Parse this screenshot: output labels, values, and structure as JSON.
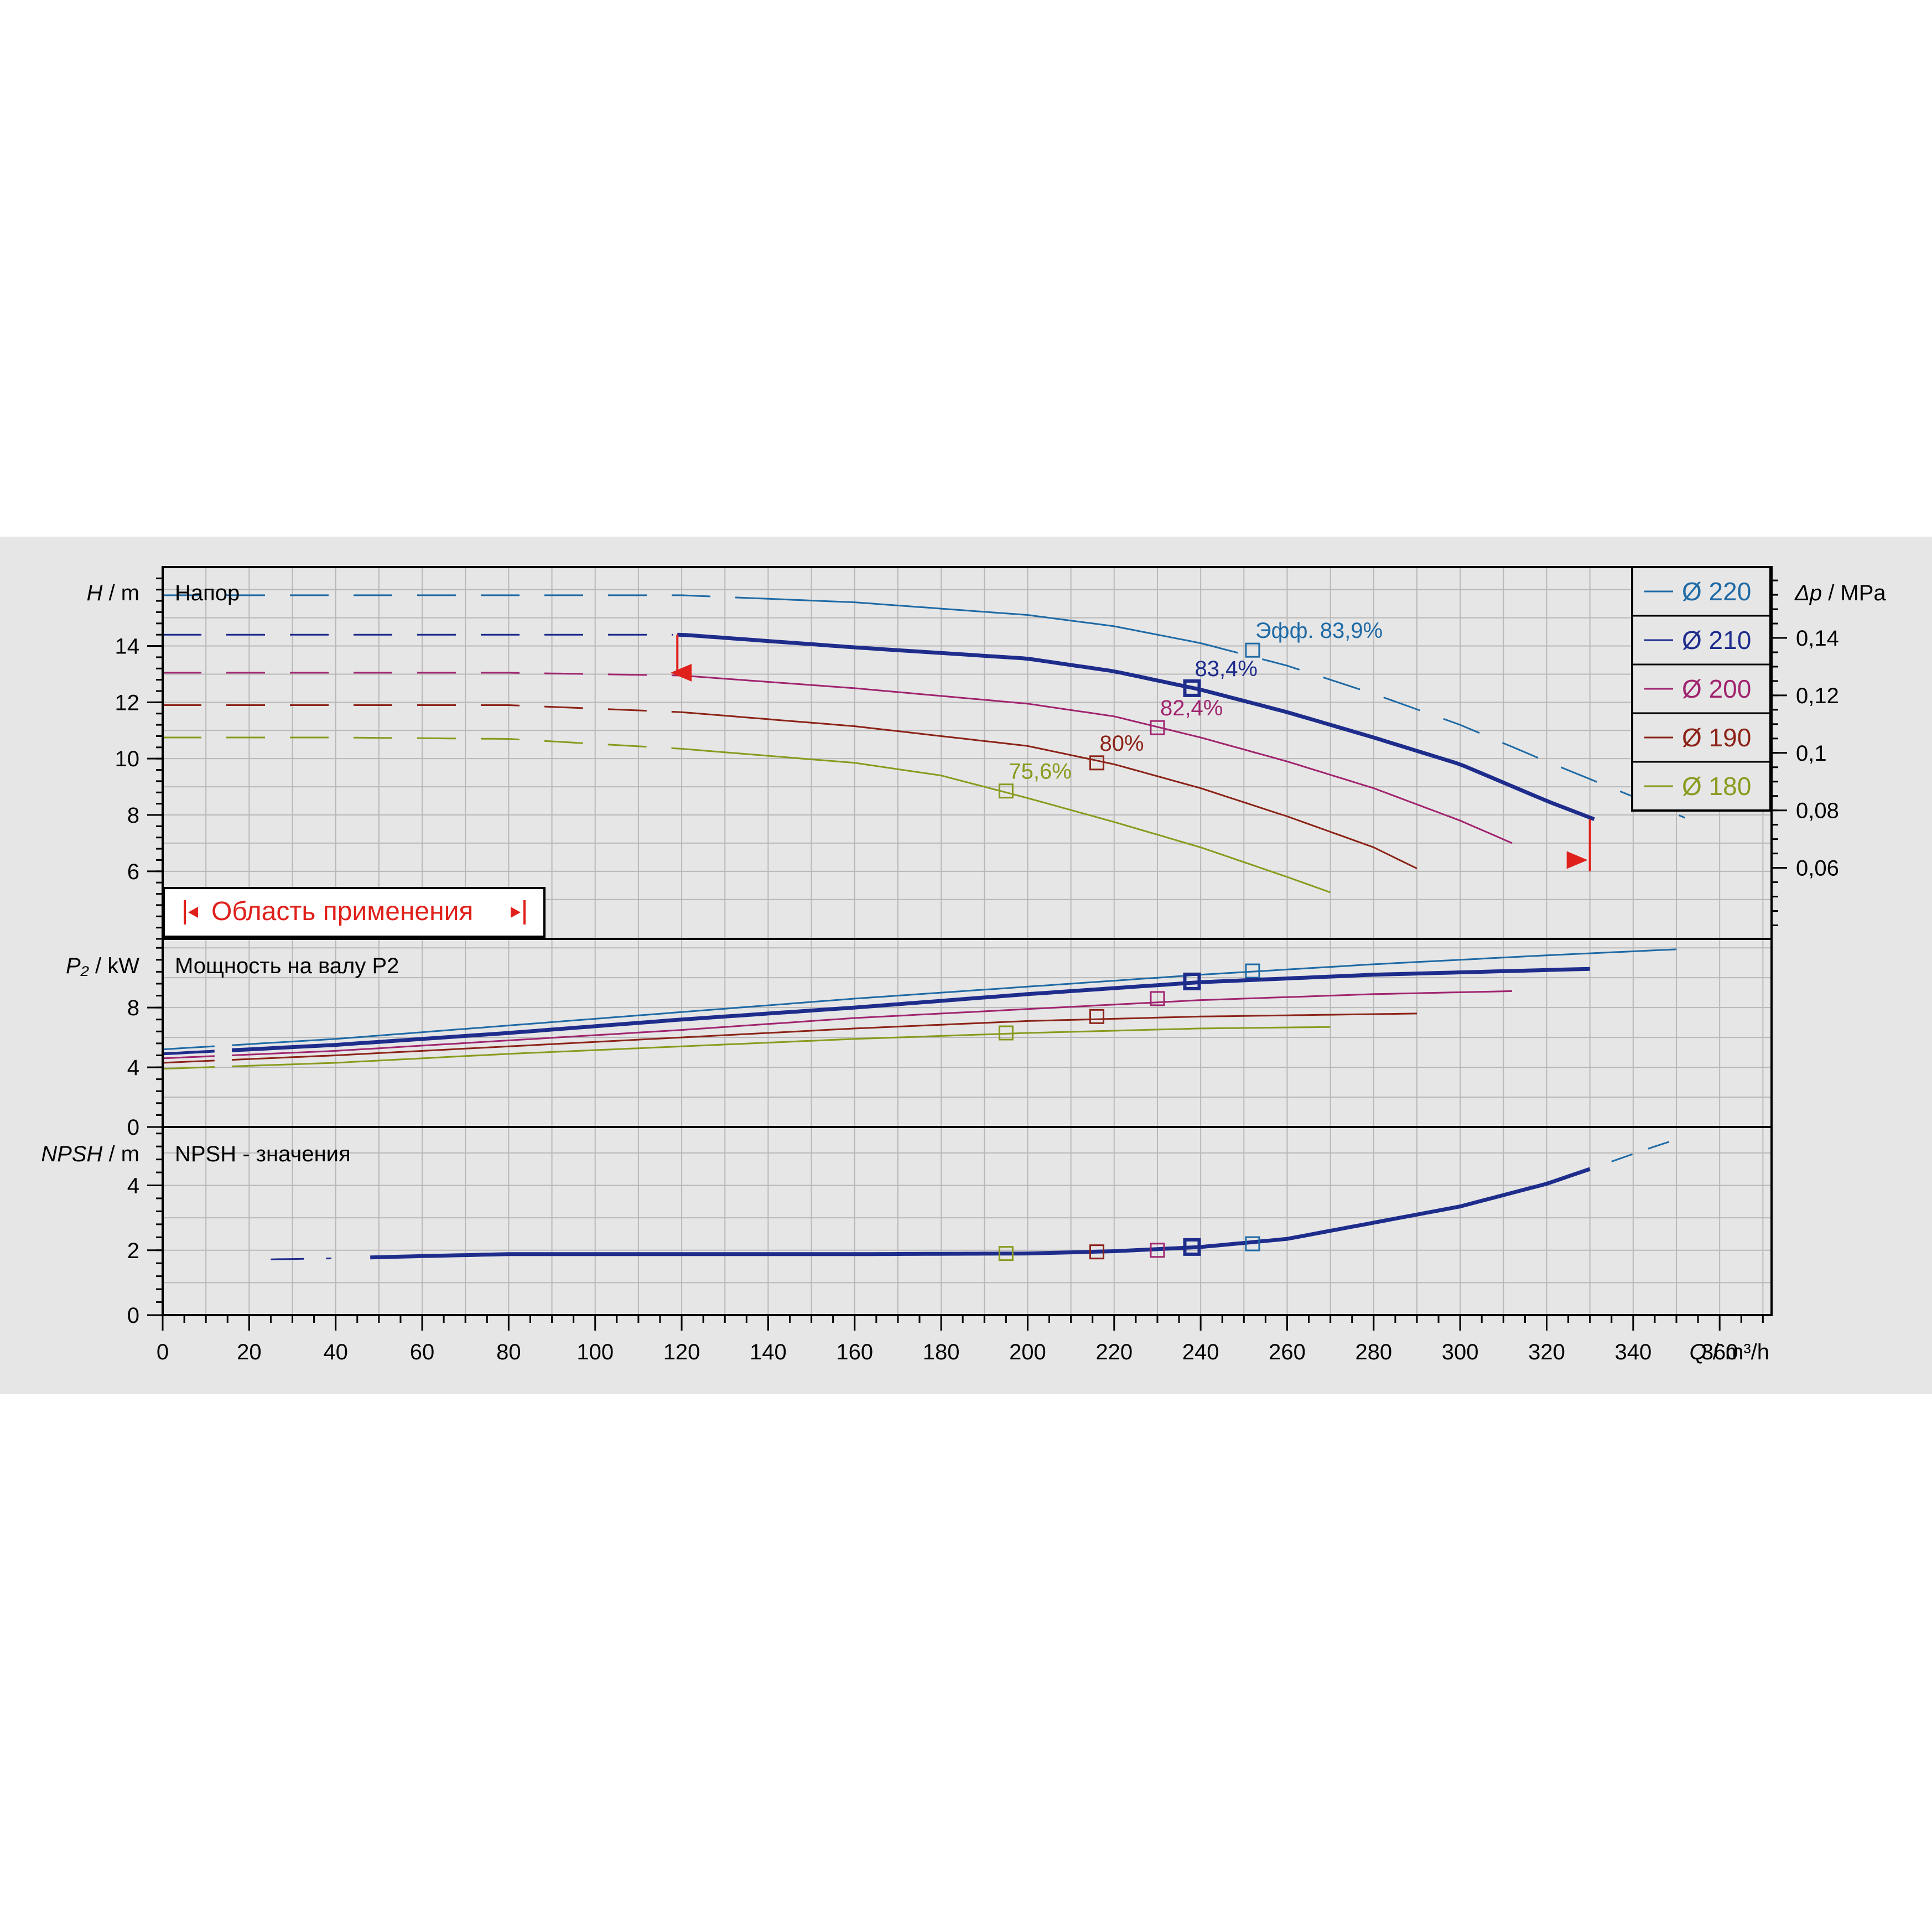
{
  "chart_data": {
    "type": "line",
    "x_axis": {
      "label_var": "Q",
      "label_unit": "m³/h",
      "ticks": [
        0,
        20,
        40,
        60,
        80,
        100,
        120,
        140,
        160,
        180,
        200,
        220,
        240,
        260,
        280,
        300,
        320,
        340,
        360
      ],
      "range": [
        0,
        372
      ]
    },
    "legend": {
      "placement": "top-right",
      "entries": [
        {
          "label": "Ø 220",
          "color": "#1f6aa5"
        },
        {
          "label": "Ø 210",
          "color": "#1e2c8c"
        },
        {
          "label": "Ø 200",
          "color": "#a0246f"
        },
        {
          "label": "Ø 190",
          "color": "#8c2318"
        },
        {
          "label": "Ø 180",
          "color": "#8a9a1e"
        }
      ]
    },
    "range_box": {
      "label": "Область применения",
      "color": "#e0201b",
      "q_min": 119,
      "q_max": 330
    },
    "panels": {
      "head": {
        "title": "Напор",
        "ylabel_var": "H",
        "ylabel_unit": "m",
        "yticks": [
          6,
          8,
          10,
          12,
          14
        ],
        "ylim": [
          3.6,
          16.8
        ],
        "right_axis": {
          "label_var": "Δp",
          "label_unit": "MPa",
          "ticks": [
            "0,06",
            "0,08",
            "0,1",
            "0,12",
            "0,14"
          ],
          "values": [
            0.06,
            0.08,
            0.1,
            0.12,
            0.14
          ]
        },
        "series": [
          {
            "name": "Ø 220",
            "color": "#1f6aa5",
            "width": 3,
            "x": [
              0,
              40,
              80,
              120,
              160,
              200,
              220,
              240,
              260,
              280,
              300,
              320,
              352
            ],
            "y": [
              15.8,
              15.8,
              15.8,
              15.8,
              15.55,
              15.1,
              14.7,
              14.1,
              13.3,
              12.3,
              11.2,
              9.9,
              7.9
            ],
            "solid_to": 240,
            "bep": {
              "x": 252,
              "y": 13.85,
              "label": "Эфф.  83,9%"
            }
          },
          {
            "name": "Ø 210",
            "color": "#1e2c8c",
            "width": 7,
            "x": [
              0,
              40,
              80,
              120,
              160,
              200,
              220,
              240,
              260,
              280,
              300,
              320,
              331
            ],
            "y": [
              14.4,
              14.4,
              14.4,
              14.4,
              13.95,
              13.55,
              13.1,
              12.45,
              11.65,
              10.75,
              9.8,
              8.5,
              7.85
            ],
            "solid_from": 119,
            "bep": {
              "x": 238,
              "y": 12.5,
              "label": "83,4%"
            }
          },
          {
            "name": "Ø 200",
            "color": "#a0246f",
            "width": 3,
            "x": [
              0,
              40,
              80,
              120,
              160,
              200,
              220,
              240,
              260,
              280,
              300,
              312
            ],
            "y": [
              13.05,
              13.05,
              13.05,
              12.95,
              12.5,
              11.95,
              11.5,
              10.75,
              9.9,
              8.95,
              7.8,
              7.0
            ],
            "solid_from": 120,
            "bep": {
              "x": 230,
              "y": 11.1,
              "label": "82,4%"
            }
          },
          {
            "name": "Ø 190",
            "color": "#8c2318",
            "width": 3,
            "x": [
              0,
              40,
              80,
              120,
              160,
              200,
              220,
              240,
              260,
              280,
              290
            ],
            "y": [
              11.9,
              11.9,
              11.9,
              11.65,
              11.15,
              10.45,
              9.8,
              8.95,
              7.95,
              6.85,
              6.1
            ],
            "solid_from": 120,
            "bep": {
              "x": 216,
              "y": 9.85,
              "label": "80%"
            }
          },
          {
            "name": "Ø 180",
            "color": "#8a9a1e",
            "width": 3,
            "x": [
              0,
              40,
              80,
              120,
              160,
              180,
              200,
              220,
              240,
              260,
              270
            ],
            "y": [
              10.75,
              10.75,
              10.7,
              10.35,
              9.85,
              9.4,
              8.6,
              7.75,
              6.85,
              5.8,
              5.25
            ],
            "solid_from": 120,
            "bep": {
              "x": 195,
              "y": 8.85,
              "label": "75,6%"
            }
          }
        ],
        "range_markers": [
          {
            "q": 120,
            "h": 13.05
          },
          {
            "q": 330,
            "h": 6.4
          }
        ]
      },
      "power": {
        "title": "Мощность на валу P2",
        "ylabel_var": "P₂",
        "ylabel_unit": "kW",
        "yticks": [
          0,
          4,
          8
        ],
        "ylim": [
          0,
          12.6
        ],
        "series": [
          {
            "name": "Ø 220",
            "color": "#1f6aa5",
            "width": 3,
            "x": [
              0,
              40,
              80,
              120,
              160,
              200,
              240,
              280,
              320,
              350
            ],
            "y": [
              5.2,
              5.9,
              6.8,
              7.7,
              8.6,
              9.4,
              10.2,
              10.9,
              11.5,
              11.9
            ],
            "bep": {
              "x": 252,
              "y": 10.45
            }
          },
          {
            "name": "Ø 210",
            "color": "#1e2c8c",
            "width": 7,
            "x": [
              0,
              40,
              80,
              120,
              160,
              200,
              240,
              280,
              331
            ],
            "y": [
              4.9,
              5.5,
              6.3,
              7.2,
              8.0,
              8.9,
              9.7,
              10.2,
              10.6
            ],
            "bep": {
              "x": 238,
              "y": 9.75
            }
          },
          {
            "name": "Ø 200",
            "color": "#a0246f",
            "width": 3,
            "x": [
              0,
              40,
              80,
              120,
              160,
              200,
              240,
              280,
              312
            ],
            "y": [
              4.6,
              5.1,
              5.8,
              6.5,
              7.3,
              7.9,
              8.5,
              8.9,
              9.1
            ],
            "bep": {
              "x": 230,
              "y": 8.6
            }
          },
          {
            "name": "Ø 190",
            "color": "#8c2318",
            "width": 3,
            "x": [
              0,
              40,
              80,
              120,
              160,
              200,
              240,
              290
            ],
            "y": [
              4.3,
              4.8,
              5.4,
              6.0,
              6.6,
              7.1,
              7.4,
              7.6
            ],
            "bep": {
              "x": 216,
              "y": 7.4
            }
          },
          {
            "name": "Ø 180",
            "color": "#8a9a1e",
            "width": 3,
            "x": [
              0,
              40,
              80,
              120,
              160,
              200,
              240,
              270
            ],
            "y": [
              3.9,
              4.3,
              4.9,
              5.4,
              5.9,
              6.3,
              6.6,
              6.7
            ],
            "bep": {
              "x": 195,
              "y": 6.3
            }
          }
        ]
      },
      "npsh": {
        "title": "NPSH - значения",
        "ylabel_var": "NPSH",
        "ylabel_unit": "m",
        "yticks": [
          0,
          2,
          4
        ],
        "ylim": [
          0,
          5.8
        ],
        "series": [
          {
            "name": "NPSH",
            "color": "#1e2c8c",
            "width": 7,
            "x": [
              25,
              40,
              60,
              80,
              120,
              160,
              200,
              220,
              240,
              260,
              280,
              300,
              320,
              331
            ],
            "y": [
              1.72,
              1.75,
              1.82,
              1.88,
              1.88,
              1.88,
              1.9,
              1.97,
              2.1,
              2.35,
              2.85,
              3.35,
              4.05,
              4.55
            ],
            "solid_from": 48,
            "solid_to": 331,
            "dash_x": [
              331,
              345,
              352
            ],
            "dash_y": [
              4.55,
              5.2,
              5.5
            ]
          }
        ],
        "bep_markers": [
          {
            "x": 195,
            "y": 1.9,
            "color": "#8a9a1e"
          },
          {
            "x": 216,
            "y": 1.95,
            "color": "#8c2318"
          },
          {
            "x": 230,
            "y": 2.0,
            "color": "#a0246f"
          },
          {
            "x": 238,
            "y": 2.1,
            "color": "#1e2c8c"
          },
          {
            "x": 252,
            "y": 2.2,
            "color": "#1f6aa5"
          }
        ]
      }
    }
  }
}
